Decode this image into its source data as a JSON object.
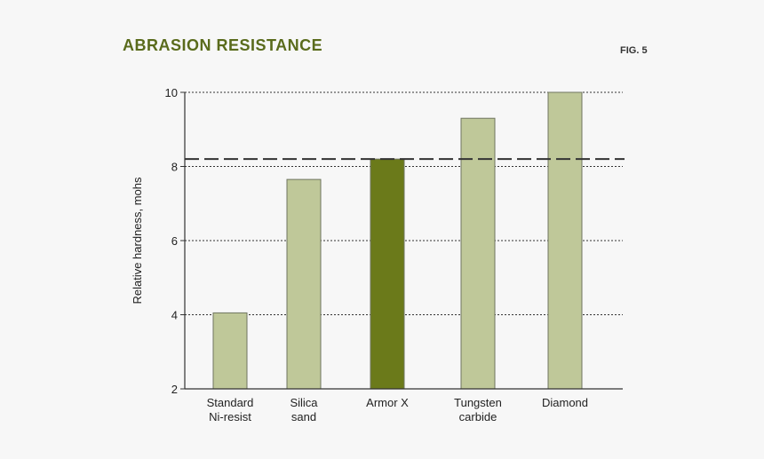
{
  "title": "ABRASION RESISTANCE",
  "figure_label": "FIG. 5",
  "colors": {
    "bar_default": "#bfc899",
    "bar_highlight": "#6b7a1a",
    "bar_stroke": "#6f7560",
    "title": "#5a6b1c",
    "axis": "#333333"
  },
  "chart_data": {
    "type": "bar",
    "categories": [
      "Standard\nNi-resist",
      "Silica\nsand",
      "Armor X",
      "Tungsten\ncarbide",
      "Diamond"
    ],
    "values": [
      4.05,
      7.65,
      8.2,
      9.3,
      10.0
    ],
    "highlight_index": 2,
    "ylabel": "Relative hardness, mohs",
    "xlabel": "",
    "ylim": [
      2,
      10
    ],
    "yticks": [
      2,
      4,
      6,
      8,
      10
    ],
    "grid": "dotted horizontal at 4, 6, 8, 10",
    "reference_line": {
      "value": 8.2,
      "style": "dashed"
    }
  }
}
